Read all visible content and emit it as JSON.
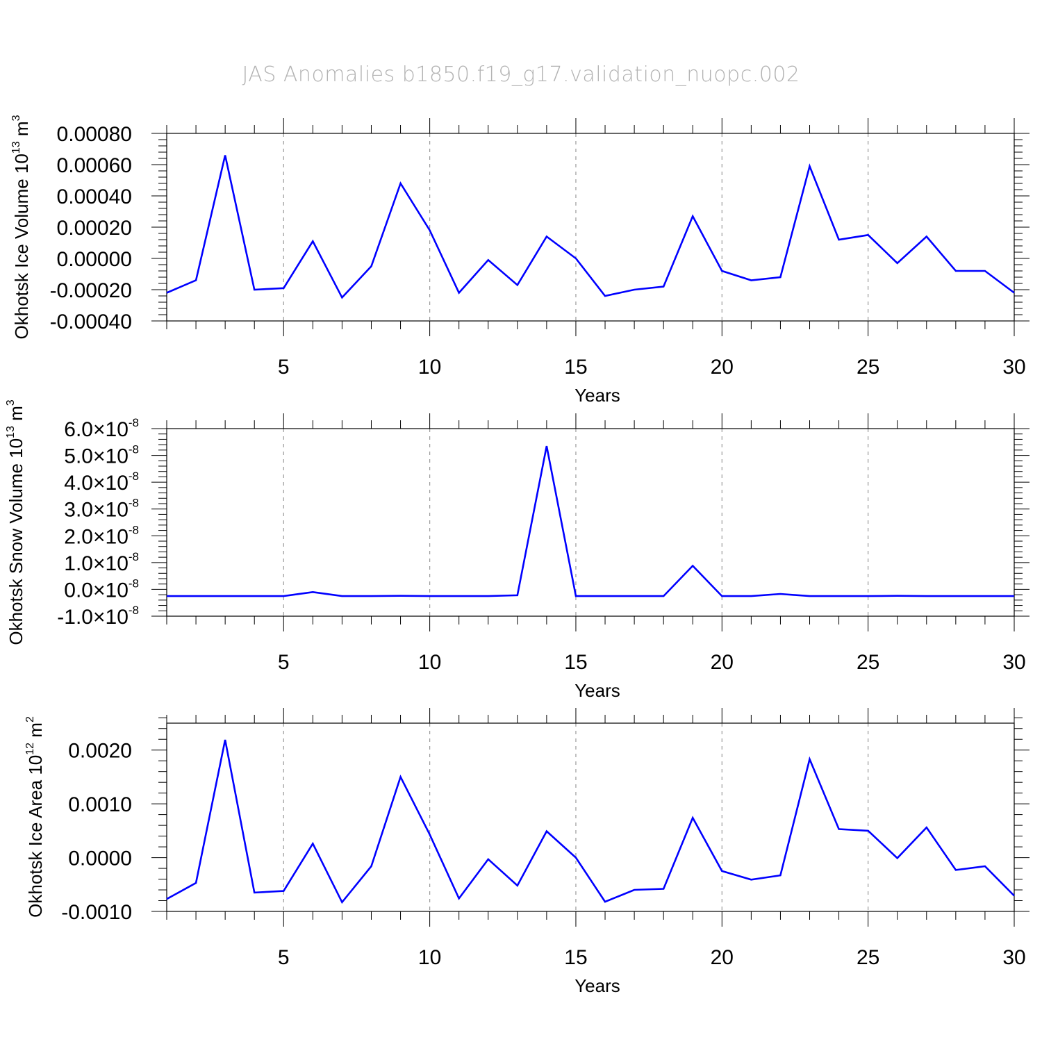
{
  "title": "JAS Anomalies b1850.f19_g17.validation_nuopc.002",
  "series_color": "#0000ff",
  "chart_data": [
    {
      "type": "line",
      "ylabel": "Okhotsk Ice Volume 10",
      "ylabel_unit_exp": "13",
      "ylabel_unit": "m",
      "ylabel_unit_pow": "3",
      "xlabel": "Years",
      "xlim": [
        1,
        30
      ],
      "ylim": [
        -0.0004,
        0.0008
      ],
      "x_ticks": [
        "5",
        "10",
        "15",
        "20",
        "25",
        "30"
      ],
      "y_ticks": [
        "0.00080",
        "0.00060",
        "0.00040",
        "0.00020",
        "0.00000",
        "-0.00020",
        "-0.00040"
      ],
      "y_tick_values": [
        0.0008,
        0.0006,
        0.0004,
        0.0002,
        0.0,
        -0.0002,
        -0.0004
      ],
      "x_grid": [
        5,
        10,
        15,
        20,
        25
      ],
      "x": [
        1,
        2,
        3,
        4,
        5,
        6,
        7,
        8,
        9,
        10,
        11,
        12,
        13,
        14,
        15,
        16,
        17,
        18,
        19,
        20,
        21,
        22,
        23,
        24,
        25,
        26,
        27,
        28,
        29,
        30
      ],
      "values": [
        -0.00022,
        -0.00014,
        0.00066,
        -0.0002,
        -0.00019,
        0.00011,
        -0.00025,
        -5e-05,
        0.00048,
        0.00018,
        -0.00022,
        -1e-05,
        -0.00017,
        0.00014,
        0.0,
        -0.00024,
        -0.0002,
        -0.00018,
        0.00027,
        -8e-05,
        -0.00014,
        -0.00012,
        0.00059,
        0.00012,
        0.00015,
        -3e-05,
        0.00014,
        -8e-05,
        -8e-05,
        -0.00022
      ]
    },
    {
      "type": "line",
      "ylabel": "Okhotsk Snow Volume 10",
      "ylabel_unit_exp": "13",
      "ylabel_unit": "m",
      "ylabel_unit_pow": "3",
      "xlabel": "Years",
      "xlim": [
        1,
        30
      ],
      "ylim": [
        -1e-08,
        6e-08
      ],
      "x_ticks": [
        "5",
        "10",
        "15",
        "20",
        "25",
        "30"
      ],
      "y_ticks": [
        "6.0",
        "5.0",
        "4.0",
        "3.0",
        "2.0",
        "1.0",
        "0.0",
        "-1.0"
      ],
      "y_tick_suffix": "×10",
      "y_tick_exp": "-8",
      "y_tick_values": [
        6e-08,
        5e-08,
        4e-08,
        3e-08,
        2e-08,
        1e-08,
        0.0,
        -1e-08
      ],
      "x_grid": [
        5,
        10,
        15,
        20,
        25
      ],
      "x": [
        1,
        2,
        3,
        4,
        5,
        6,
        7,
        8,
        9,
        10,
        11,
        12,
        13,
        14,
        15,
        16,
        17,
        18,
        19,
        20,
        21,
        22,
        23,
        24,
        25,
        26,
        27,
        28,
        29,
        30
      ],
      "values": [
        -2.5e-09,
        -2.5e-09,
        -2.5e-09,
        -2.5e-09,
        -2.5e-09,
        -1e-09,
        -2.5e-09,
        -2.5e-09,
        -2.4e-09,
        -2.5e-09,
        -2.5e-09,
        -2.5e-09,
        -2.2e-09,
        5.35e-08,
        -2.5e-09,
        -2.5e-09,
        -2.5e-09,
        -2.5e-09,
        8.8e-09,
        -2.5e-09,
        -2.5e-09,
        -1.7e-09,
        -2.5e-09,
        -2.5e-09,
        -2.5e-09,
        -2.4e-09,
        -2.5e-09,
        -2.5e-09,
        -2.5e-09,
        -2.5e-09
      ]
    },
    {
      "type": "line",
      "ylabel": "Okhotsk Ice Area 10",
      "ylabel_unit_exp": "12",
      "ylabel_unit": "m",
      "ylabel_unit_pow": "2",
      "xlabel": "Years",
      "xlim": [
        1,
        30
      ],
      "ylim": [
        -0.001,
        0.0025
      ],
      "x_ticks": [
        "5",
        "10",
        "15",
        "20",
        "25",
        "30"
      ],
      "y_ticks": [
        "0.0020",
        "0.0010",
        "0.0000",
        "-0.0010"
      ],
      "y_tick_values": [
        0.002,
        0.001,
        0.0,
        -0.001
      ],
      "x_grid": [
        5,
        10,
        15,
        20,
        25
      ],
      "x": [
        1,
        2,
        3,
        4,
        5,
        6,
        7,
        8,
        9,
        10,
        11,
        12,
        13,
        14,
        15,
        16,
        17,
        18,
        19,
        20,
        21,
        22,
        23,
        24,
        25,
        26,
        27,
        28,
        29,
        30
      ],
      "values": [
        -0.00077,
        -0.00047,
        0.00219,
        -0.00065,
        -0.00062,
        0.00026,
        -0.00083,
        -0.00016,
        0.0015,
        0.00043,
        -0.00076,
        -3e-05,
        -0.00052,
        0.00049,
        0.0,
        -0.00082,
        -0.0006,
        -0.00058,
        0.00074,
        -0.00025,
        -0.00041,
        -0.00033,
        0.00183,
        0.00053,
        0.0005,
        -1e-05,
        0.00056,
        -0.00023,
        -0.00016,
        -0.00071
      ]
    }
  ]
}
